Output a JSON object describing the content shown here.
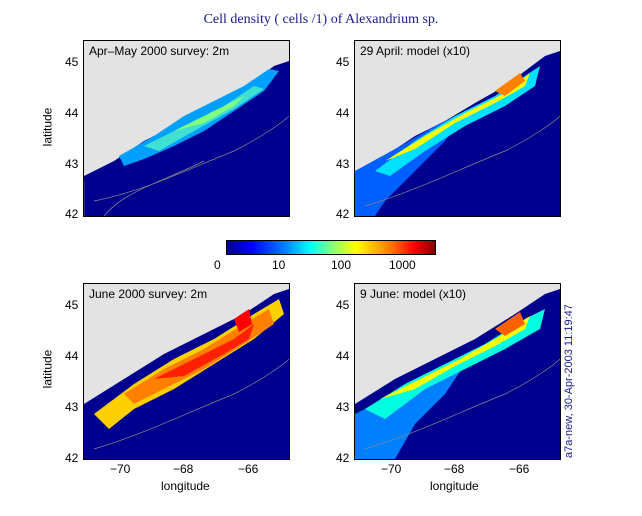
{
  "figure": {
    "title": "Cell density ( cells /1) of Alexandrium sp.",
    "stamp": "a7a-new, 30-Apr-2003 11:19:47"
  },
  "colorbar": {
    "ticks": [
      "0",
      "10",
      "100",
      "1000"
    ],
    "colors": [
      "#00008f",
      "#0000ff",
      "#00ffff",
      "#ffff00",
      "#ff0000",
      "#800000"
    ]
  },
  "axes": {
    "ylabel": "latitude",
    "xlabel": "longitude",
    "lat_ticks": [
      "45",
      "44",
      "43",
      "42"
    ],
    "lon_ticks": [
      "−70",
      "−68",
      "−66"
    ]
  },
  "chart_data": [
    {
      "type": "heatmap",
      "title": "Apr–May 2000 survey: 2m",
      "xlim": [
        -71.3,
        -65
      ],
      "ylim": [
        42,
        45.5
      ]
    },
    {
      "type": "heatmap",
      "title": "29 April: model (x10)",
      "xlim": [
        -71.3,
        -65
      ],
      "ylim": [
        42,
        45.5
      ]
    },
    {
      "type": "heatmap",
      "title": "June 2000 survey: 2m",
      "xlim": [
        -71.3,
        -65
      ],
      "ylim": [
        42,
        45.5
      ]
    },
    {
      "type": "heatmap",
      "title": "9 June: model (x10)",
      "xlim": [
        -71.3,
        -65
      ],
      "ylim": [
        42,
        45.5
      ]
    }
  ]
}
